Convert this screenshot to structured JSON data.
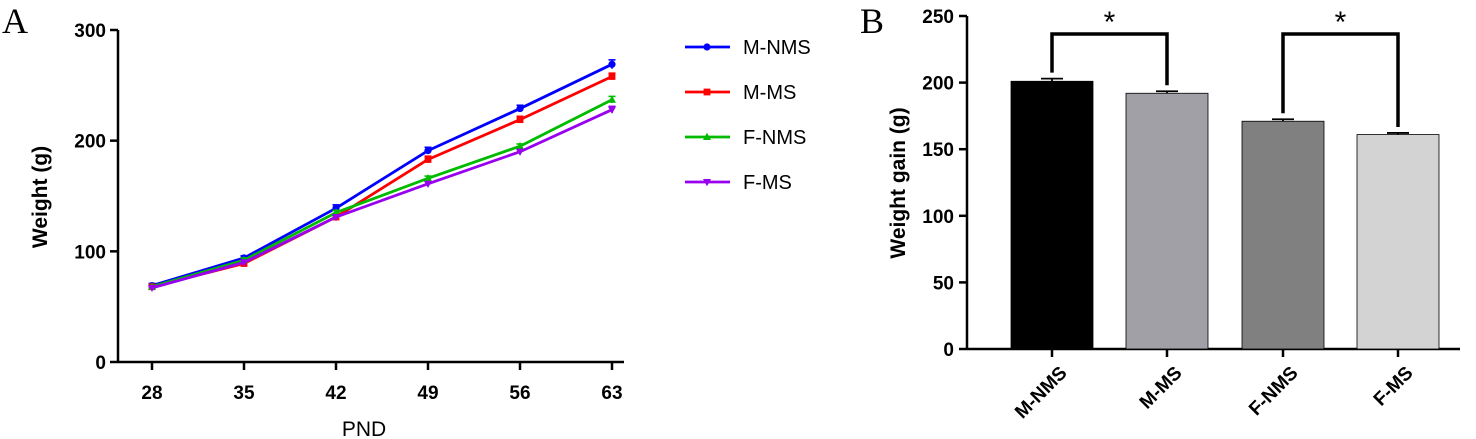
{
  "chart_data": [
    {
      "panel": "A",
      "type": "line",
      "title": "",
      "xlabel": "PND",
      "ylabel": "Weight (g)",
      "x": [
        28,
        35,
        42,
        49,
        56,
        63
      ],
      "x_tick_labels": [
        "28",
        "35",
        "42",
        "49",
        "56",
        "63"
      ],
      "y_tick_labels": [
        "0",
        "100",
        "200",
        "300"
      ],
      "ylim": [
        0,
        300
      ],
      "y_ticks": [
        0,
        100,
        200,
        300
      ],
      "legend_position": "right",
      "series": [
        {
          "name": "M-NMS",
          "color": "#0000ff",
          "marker": "circle",
          "values": [
            69,
            94,
            139,
            191,
            229,
            269
          ],
          "errors": [
            2,
            2,
            3,
            3,
            3,
            4
          ]
        },
        {
          "name": "M-MS",
          "color": "#ff0000",
          "marker": "square",
          "values": [
            68,
            89,
            131,
            183,
            219,
            258
          ],
          "errors": [
            2,
            2,
            3,
            3,
            3,
            3
          ]
        },
        {
          "name": "F-NMS",
          "color": "#00bb00",
          "marker": "triangle-up",
          "values": [
            68,
            92,
            135,
            166,
            195,
            237
          ],
          "errors": [
            1,
            2,
            2,
            2,
            2,
            3
          ]
        },
        {
          "name": "F-MS",
          "color": "#9900ee",
          "marker": "triangle-down",
          "values": [
            67,
            90,
            131,
            161,
            190,
            228
          ],
          "errors": [
            1,
            2,
            2,
            2,
            2,
            3
          ]
        }
      ]
    },
    {
      "panel": "B",
      "type": "bar",
      "title": "",
      "xlabel": "",
      "ylabel": "Weight gain (g)",
      "categories": [
        "M-NMS",
        "M-MS",
        "F-NMS",
        "F-MS"
      ],
      "values": [
        201,
        192,
        171,
        161
      ],
      "errors": [
        2,
        1.5,
        1.5,
        1.2
      ],
      "colors": [
        "#000000",
        "#a0a0a6",
        "#808080",
        "#d3d3d3"
      ],
      "ylim": [
        0,
        250
      ],
      "y_ticks": [
        0,
        50,
        100,
        150,
        200,
        250
      ],
      "y_tick_labels": [
        "0",
        "50",
        "100",
        "150",
        "200",
        "250"
      ],
      "significance": [
        {
          "from": "M-NMS",
          "to": "M-MS",
          "label": "*"
        },
        {
          "from": "F-NMS",
          "to": "F-MS",
          "label": "*"
        }
      ]
    }
  ]
}
